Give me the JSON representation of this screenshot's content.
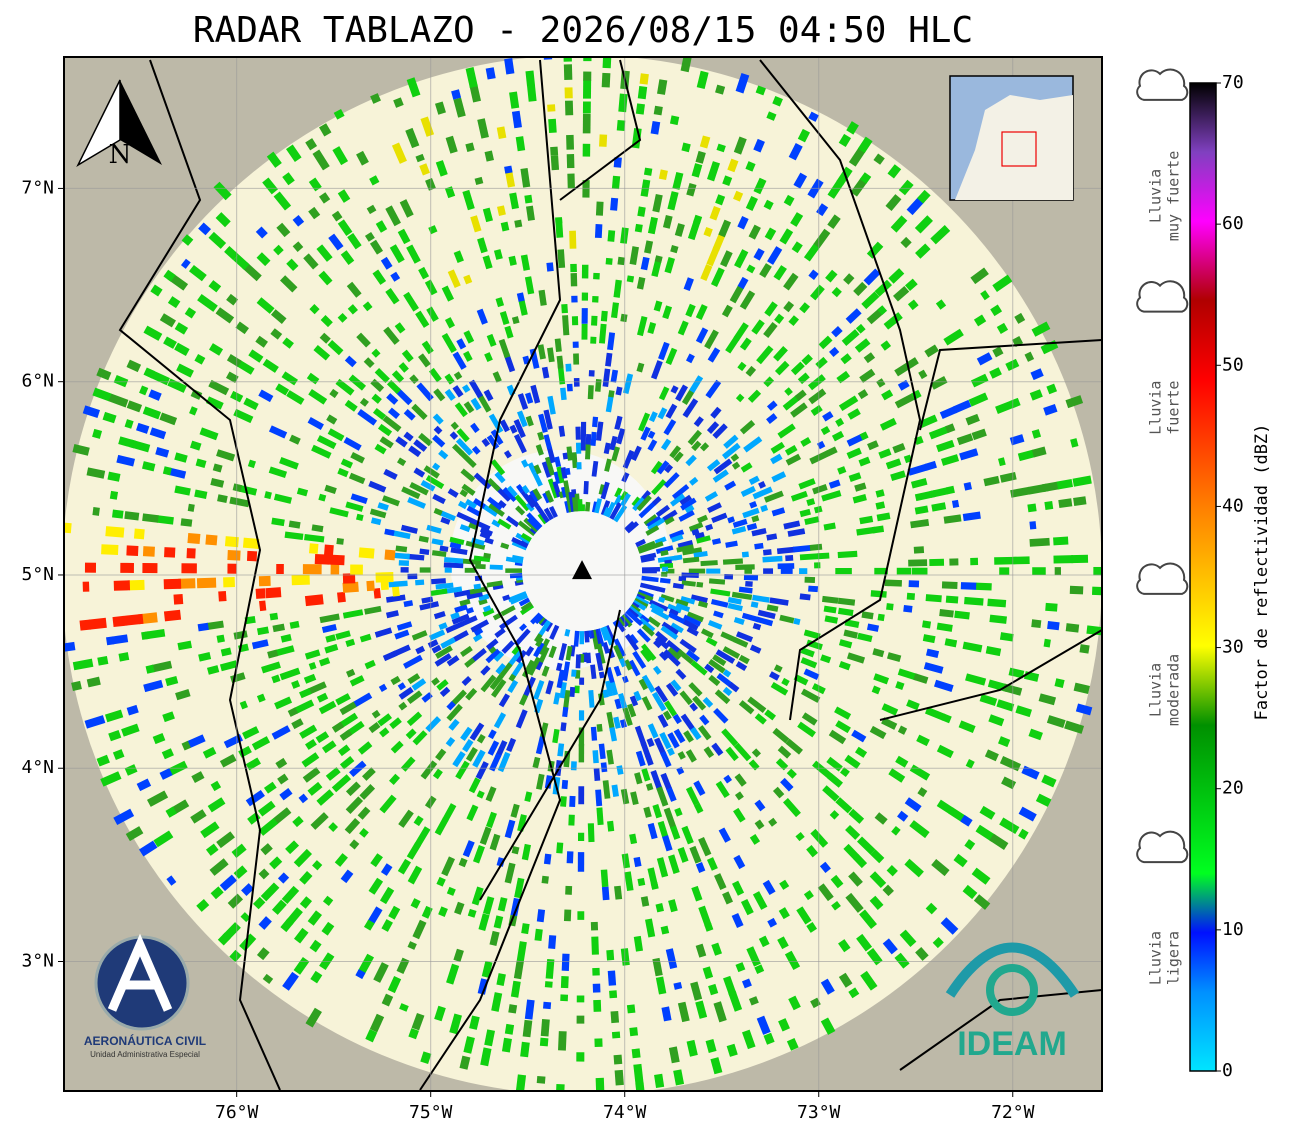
{
  "title": "RADAR TABLAZO - 2026/08/15 04:50 HLC",
  "map": {
    "xlim": [
      -76.89,
      -71.54
    ],
    "ylim": [
      2.33,
      7.68
    ],
    "xticks": [
      {
        "value": -76,
        "label": "76°W"
      },
      {
        "value": -75,
        "label": "75°W"
      },
      {
        "value": -74,
        "label": "74°W"
      },
      {
        "value": -73,
        "label": "73°W"
      },
      {
        "value": -72,
        "label": "72°W"
      }
    ],
    "yticks": [
      {
        "value": 7,
        "label": "7°N"
      },
      {
        "value": 6,
        "label": "6°N"
      },
      {
        "value": 5,
        "label": "5°N"
      },
      {
        "value": 4,
        "label": "4°N"
      },
      {
        "value": 3,
        "label": "3°N"
      }
    ],
    "grid": true,
    "radar_site": {
      "lon": -74.22,
      "lat": 5.02
    },
    "north_label": "N"
  },
  "colorbar": {
    "label": "Factor de reflectividad (dBZ)",
    "lim": [
      0,
      70
    ],
    "ticks": [
      0,
      10,
      20,
      30,
      40,
      50,
      60,
      70
    ],
    "intensity": [
      {
        "lines": [
          "Lluvia",
          "muy fuerte"
        ],
        "value": 62
      },
      {
        "lines": [
          "Lluvia",
          "fuerte"
        ],
        "value": 47
      },
      {
        "lines": [
          "Lluvia",
          "moderada"
        ],
        "value": 27
      },
      {
        "lines": [
          "Lluvia",
          "ligera"
        ],
        "value": 8
      }
    ]
  },
  "logos": {
    "left": [
      "AERONÁUTICA CIVIL",
      "Unidad Administrativa Especial"
    ],
    "right": "IDEAM"
  }
}
